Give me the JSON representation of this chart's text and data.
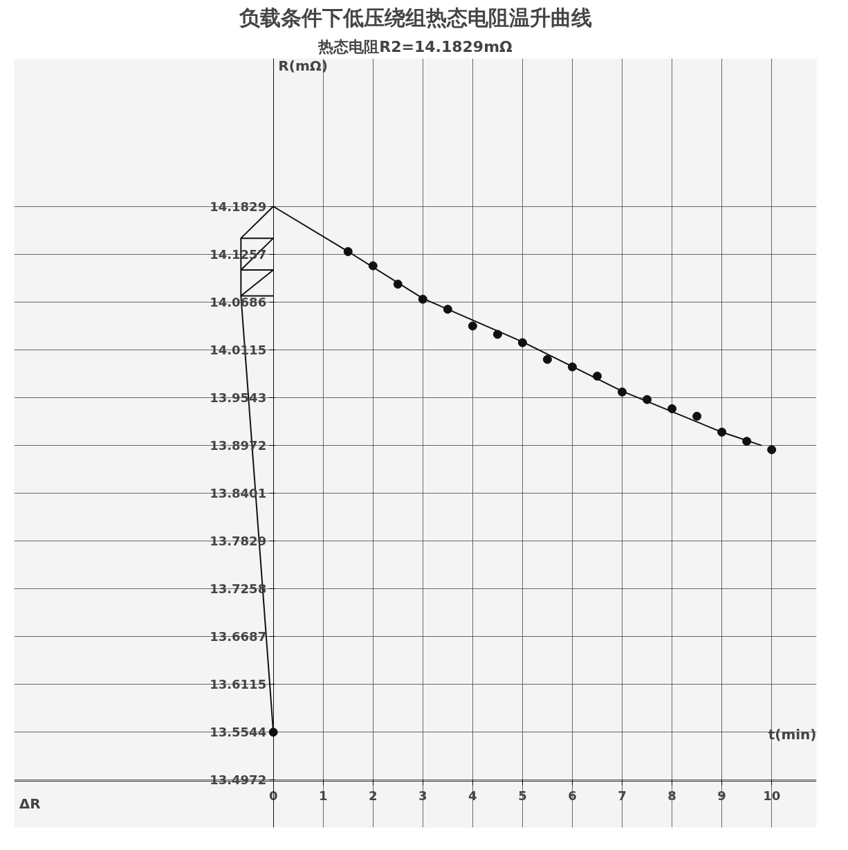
{
  "chart_data": {
    "type": "scatter",
    "title": "负载条件下低压绕组热态电阻温升曲线",
    "subtitle": "热态电阻R2=14.1829mΩ",
    "xlabel": "t(min)",
    "ylabel": "R(mΩ)",
    "annotations": [
      "ΔR"
    ],
    "xlim": [
      -5.2,
      10.9
    ],
    "ylim": [
      13.44,
      14.36
    ],
    "xticks": [
      0,
      1,
      2,
      3,
      4,
      5,
      6,
      7,
      8,
      9,
      10
    ],
    "yticks": [
      14.1829,
      14.1257,
      14.0686,
      14.0115,
      13.9543,
      13.8972,
      13.8401,
      13.7829,
      13.7258,
      13.6687,
      13.6115,
      13.5544,
      13.4972
    ],
    "grid": true,
    "marker": "circle",
    "series": [
      {
        "color": "#111111",
        "x": [
          0,
          1.5,
          2,
          2.5,
          3,
          3.5,
          4,
          4.5,
          5,
          5.5,
          6,
          6.5,
          7,
          7.5,
          8,
          8.5,
          9,
          9.5,
          10
        ],
        "values": [
          13.554,
          14.129,
          14.112,
          14.09,
          14.072,
          14.06,
          14.04,
          14.03,
          14.02,
          14.0,
          13.991,
          13.98,
          13.961,
          13.952,
          13.941,
          13.932,
          13.913,
          13.902,
          13.892
        ]
      },
      {
        "type": "line",
        "color": "#111111",
        "marker": "none",
        "x": [
          0,
          1.5,
          3,
          5,
          7,
          9,
          9.8
        ],
        "values": [
          14.183,
          14.129,
          14.073,
          14.021,
          13.962,
          13.913,
          13.897
        ]
      },
      {
        "type": "line",
        "color": "#111111",
        "marker": "none",
        "x": [
          0,
          -0.65,
          0,
          -0.65,
          0,
          -0.65,
          0,
          null,
          -0.65,
          -0.65,
          0
        ],
        "values": [
          14.183,
          14.145,
          14.145,
          14.107,
          14.107,
          14.076,
          14.076,
          null,
          14.145,
          14.076,
          13.554
        ]
      }
    ]
  }
}
